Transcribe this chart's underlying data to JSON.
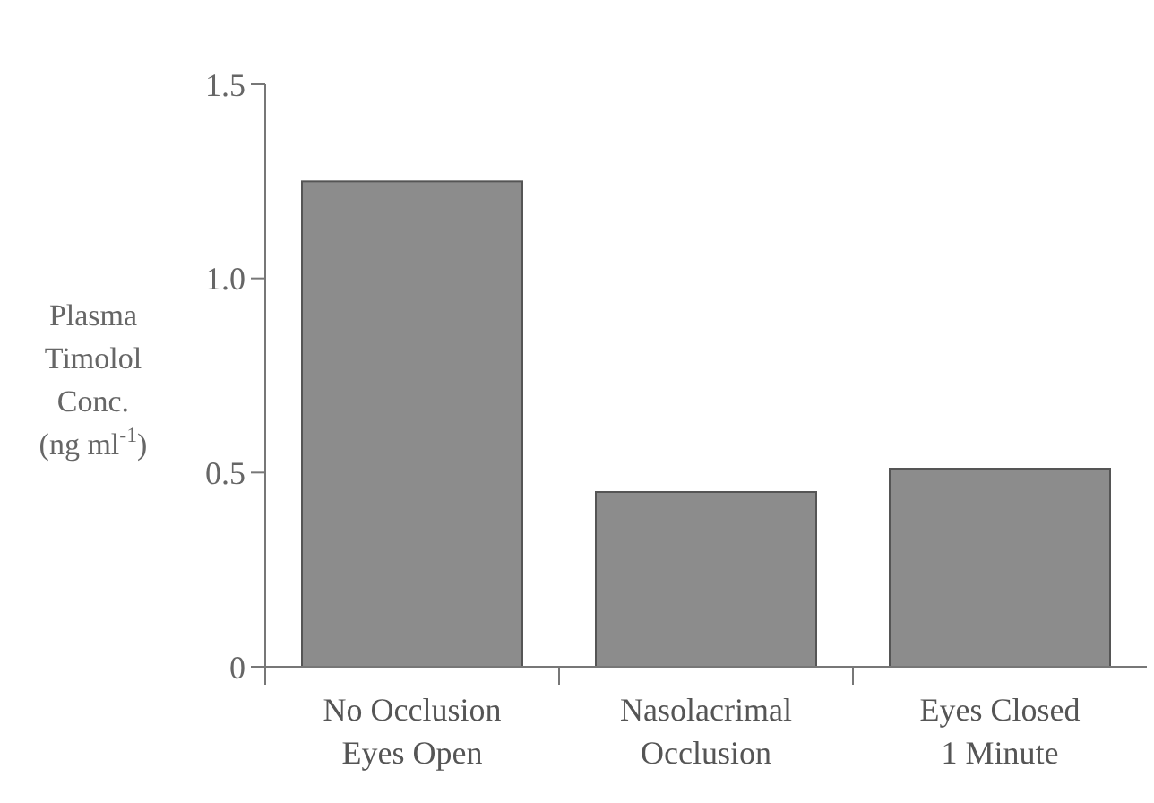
{
  "chart_data": {
    "type": "bar",
    "ylabel": "Plasma Timolol Conc. (ng ml$^{-1}$)",
    "categories": [
      "No Occlusion Eyes Open",
      "Nasolacrimal Occlusion",
      "Eyes Closed 1 Minute"
    ],
    "values": [
      1.25,
      0.45,
      0.51
    ],
    "color": "#8c8c8c",
    "ylim": [
      0,
      1.5
    ],
    "yticks": [
      {
        "value": 0,
        "label": "0"
      },
      {
        "value": 0.5,
        "label": "0.5"
      },
      {
        "value": 1,
        "label": "1.0"
      },
      {
        "value": 1.5,
        "label": "1.5"
      }
    ],
    "grid": false
  }
}
